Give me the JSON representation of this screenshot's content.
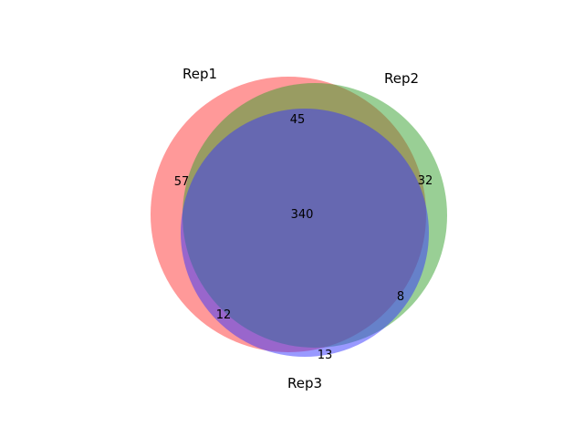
{
  "sets": [
    {
      "name": "Rep1",
      "color": "#ff3333"
    },
    {
      "name": "Rep2",
      "color": "#33a02c"
    },
    {
      "name": "Rep3",
      "color": "#3333ff"
    }
  ],
  "regions": {
    "rep1_only": "57",
    "rep2_only": "32",
    "rep3_only": "13",
    "rep1_rep2": "45",
    "rep1_rep3": "12",
    "rep2_rep3": "8",
    "all_three": "340"
  }
}
